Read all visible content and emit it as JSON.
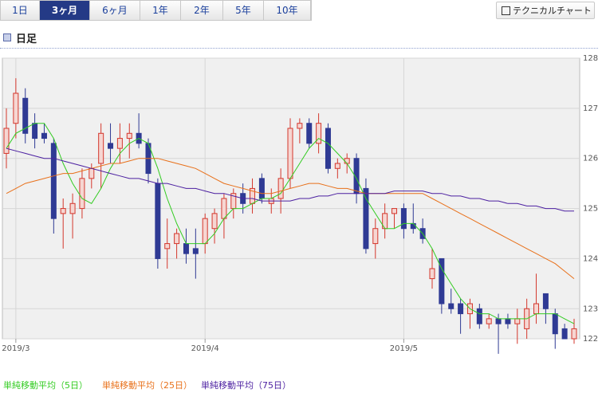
{
  "tabs": [
    "1日",
    "3ヶ月",
    "6ヶ月",
    "1年",
    "2年",
    "5年",
    "10年"
  ],
  "active_tab": 1,
  "button": "テクニカルチャート",
  "section_title": "日足",
  "chart_data": {
    "type": "candlestick",
    "categories": [
      null,
      "2019/3",
      null,
      null,
      null,
      null,
      null,
      null,
      null,
      null,
      null,
      null,
      null,
      null,
      null,
      null,
      null,
      null,
      null,
      null,
      null,
      "2019/4",
      null,
      null,
      null,
      null,
      null,
      null,
      null,
      null,
      null,
      null,
      null,
      null,
      null,
      null,
      null,
      null,
      null,
      null,
      null,
      null,
      "2019/5",
      null,
      null,
      null,
      null,
      null,
      null,
      null,
      null,
      null,
      null,
      null,
      null,
      null,
      null,
      null,
      null,
      null,
      null
    ],
    "open": [
      126.1,
      126.7,
      127.2,
      126.7,
      126.5,
      126.3,
      124.9,
      124.9,
      125.0,
      125.6,
      125.9,
      126.3,
      126.2,
      126.4,
      126.5,
      126.3,
      125.5,
      124.2,
      124.3,
      124.3,
      124.2,
      124.3,
      124.6,
      124.8,
      125.0,
      125.3,
      125.1,
      125.6,
      125.1,
      125.2,
      125.6,
      126.6,
      126.7,
      126.3,
      126.6,
      125.8,
      125.9,
      126.0,
      125.4,
      124.3,
      124.6,
      124.9,
      125.0,
      124.7,
      124.6,
      123.6,
      124.0,
      123.1,
      123.1,
      122.9,
      123.0,
      122.7,
      122.8,
      122.8,
      122.7,
      122.6,
      122.9,
      123.3,
      122.9,
      122.6,
      122.4
    ],
    "high": [
      127.0,
      127.6,
      127.4,
      126.9,
      126.7,
      126.4,
      125.2,
      125.3,
      125.8,
      125.9,
      126.7,
      126.7,
      126.7,
      126.7,
      126.9,
      126.4,
      125.6,
      124.8,
      124.6,
      124.6,
      124.6,
      124.9,
      125.0,
      125.3,
      125.4,
      125.5,
      125.6,
      125.7,
      125.4,
      125.8,
      126.8,
      126.8,
      126.8,
      126.9,
      126.7,
      126.0,
      126.1,
      126.1,
      125.6,
      124.8,
      125.1,
      125.0,
      125.1,
      125.1,
      124.8,
      124.2,
      124.0,
      123.4,
      123.2,
      123.2,
      123.1,
      122.9,
      122.9,
      122.9,
      123.0,
      123.2,
      123.7,
      123.3,
      123.0,
      122.7,
      122.8
    ],
    "low": [
      125.8,
      126.4,
      126.3,
      126.2,
      126.3,
      124.5,
      124.2,
      124.4,
      124.8,
      125.4,
      125.4,
      125.9,
      125.9,
      126.0,
      126.2,
      125.5,
      123.8,
      123.8,
      124.0,
      123.9,
      123.6,
      124.1,
      124.3,
      124.4,
      124.8,
      124.9,
      124.9,
      125.1,
      124.9,
      124.9,
      125.4,
      126.3,
      126.2,
      126.1,
      125.7,
      125.6,
      125.7,
      125.1,
      124.1,
      124.0,
      124.4,
      124.6,
      124.4,
      124.5,
      124.3,
      123.4,
      122.9,
      122.9,
      122.5,
      122.6,
      122.6,
      122.6,
      122.1,
      122.6,
      122.3,
      122.4,
      122.7,
      122.7,
      122.2,
      122.4,
      122.3
    ],
    "close": [
      126.6,
      127.3,
      126.5,
      126.4,
      126.4,
      124.8,
      125.0,
      125.1,
      125.6,
      125.8,
      126.5,
      126.2,
      126.4,
      126.5,
      126.3,
      125.7,
      124.0,
      124.3,
      124.5,
      124.1,
      124.1,
      124.8,
      124.9,
      125.2,
      125.3,
      125.1,
      125.4,
      125.2,
      125.2,
      125.6,
      126.6,
      126.7,
      126.3,
      126.7,
      125.8,
      125.9,
      126.0,
      125.3,
      124.2,
      124.6,
      124.9,
      125.0,
      124.6,
      124.6,
      124.4,
      123.8,
      123.1,
      123.0,
      122.9,
      123.1,
      122.7,
      122.8,
      122.7,
      122.7,
      122.8,
      123.0,
      123.1,
      123.0,
      122.5,
      122.4,
      122.6
    ],
    "up_color": "#d4372c",
    "down_color": "#2f3a94",
    "series": [
      {
        "name": "単純移動平均（5日）",
        "color": "#33cc22",
        "values": [
          126.2,
          126.5,
          126.6,
          126.7,
          126.7,
          126.4,
          125.9,
          125.5,
          125.2,
          125.1,
          125.4,
          125.8,
          126.1,
          126.3,
          126.4,
          126.3,
          125.8,
          125.2,
          124.7,
          124.3,
          124.3,
          124.3,
          124.5,
          124.8,
          125.0,
          125.0,
          125.1,
          125.2,
          125.2,
          125.3,
          125.6,
          125.9,
          126.2,
          126.4,
          126.3,
          126.1,
          125.9,
          125.6,
          125.2,
          124.9,
          124.6,
          124.6,
          124.7,
          124.7,
          124.5,
          124.2,
          123.8,
          123.5,
          123.2,
          123.0,
          122.9,
          122.9,
          122.8,
          122.8,
          122.8,
          122.8,
          122.9,
          122.9,
          122.9,
          122.8,
          122.7
        ]
      },
      {
        "name": "単純移動平均（25日）",
        "color": "#e8701a",
        "values": [
          125.3,
          125.4,
          125.5,
          125.55,
          125.6,
          125.65,
          125.7,
          125.7,
          125.75,
          125.8,
          125.85,
          125.9,
          125.9,
          125.95,
          126.0,
          126.0,
          126.0,
          125.95,
          125.9,
          125.85,
          125.8,
          125.7,
          125.6,
          125.5,
          125.45,
          125.4,
          125.35,
          125.3,
          125.3,
          125.35,
          125.4,
          125.45,
          125.5,
          125.5,
          125.45,
          125.4,
          125.4,
          125.35,
          125.3,
          125.3,
          125.3,
          125.3,
          125.3,
          125.3,
          125.3,
          125.2,
          125.1,
          125.0,
          124.9,
          124.8,
          124.7,
          124.6,
          124.5,
          124.4,
          124.3,
          124.2,
          124.1,
          124.0,
          123.9,
          123.75,
          123.6
        ]
      },
      {
        "name": "単純移動平均（75日）",
        "color": "#4b1fa0",
        "values": [
          126.2,
          126.15,
          126.1,
          126.05,
          126.0,
          126.0,
          125.95,
          125.9,
          125.85,
          125.8,
          125.75,
          125.7,
          125.65,
          125.6,
          125.6,
          125.55,
          125.5,
          125.5,
          125.45,
          125.4,
          125.4,
          125.35,
          125.3,
          125.3,
          125.25,
          125.2,
          125.2,
          125.15,
          125.15,
          125.15,
          125.15,
          125.2,
          125.2,
          125.25,
          125.25,
          125.3,
          125.3,
          125.3,
          125.3,
          125.3,
          125.3,
          125.35,
          125.35,
          125.35,
          125.35,
          125.3,
          125.3,
          125.25,
          125.25,
          125.2,
          125.2,
          125.15,
          125.15,
          125.1,
          125.1,
          125.05,
          125.05,
          125.0,
          125.0,
          124.95,
          124.95
        ]
      }
    ],
    "ylim": [
      122.4,
      128
    ],
    "yticks": [
      {
        "value": 122.4,
        "label": "122"
      },
      123,
      124,
      125,
      126,
      127,
      128
    ],
    "grid": true
  }
}
